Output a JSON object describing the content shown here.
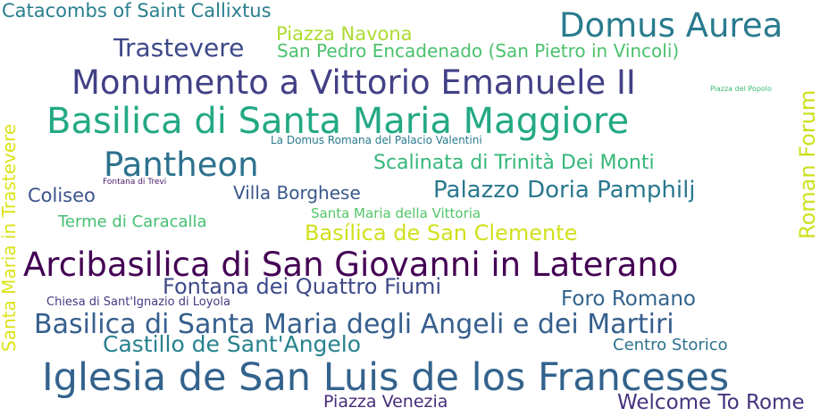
{
  "word_cloud": {
    "words": [
      {
        "text": "Catacombs of Saint Callixtus",
        "color": "#2a7f8e"
      },
      {
        "text": "Domus Aurea",
        "color": "#297b8e"
      },
      {
        "text": "Piazza Navona",
        "color": "#addc30"
      },
      {
        "text": "Trastevere",
        "color": "#3e4989"
      },
      {
        "text": "San Pedro Encadenado (San Pietro in Vincoli)",
        "color": "#4ac16d"
      },
      {
        "text": "Monumento a Vittorio Emanuele II",
        "color": "#424086"
      },
      {
        "text": "Piazza del Popolo",
        "color": "#3dbc74"
      },
      {
        "text": "Basilica di Santa Maria Maggiore",
        "color": "#23a983"
      },
      {
        "text": "Roman Forum",
        "color": "#cde11d"
      },
      {
        "text": "Santa Maria in Trastevere",
        "color": "#dde318"
      },
      {
        "text": "La Domus Romana del Palacio Valentini",
        "color": "#297a8e"
      },
      {
        "text": "Pantheon",
        "color": "#2c718e"
      },
      {
        "text": "Scalinata di Trinità Dei Monti",
        "color": "#35b779"
      },
      {
        "text": "Fontana di Trevi",
        "color": "#481769"
      },
      {
        "text": "Coliseo",
        "color": "#3b528b"
      },
      {
        "text": "Villa Borghese",
        "color": "#38588c"
      },
      {
        "text": "Palazzo Doria Pamphilj",
        "color": "#2a788e"
      },
      {
        "text": "Terme di Caracalla",
        "color": "#44bf70"
      },
      {
        "text": "Santa Maria della Vittoria",
        "color": "#52c569"
      },
      {
        "text": "Basílica de San Clemente",
        "color": "#d0e11c"
      },
      {
        "text": "Arcibasilica di San Giovanni in Laterano",
        "color": "#440154"
      },
      {
        "text": "Fontana dei Quattro Fiumi",
        "color": "#3e4a89"
      },
      {
        "text": "Chiesa di Sant'Ignazio di Loyola",
        "color": "#443983"
      },
      {
        "text": "Foro Romano",
        "color": "#33638d"
      },
      {
        "text": "Basilica di Santa Maria degli Angeli e dei Martiri",
        "color": "#355f8d"
      },
      {
        "text": "Castillo de Sant'Angelo",
        "color": "#26828e"
      },
      {
        "text": "Centro Storico",
        "color": "#2c728e"
      },
      {
        "text": "Iglesia de San Luis de los Franceses",
        "color": "#33638d"
      },
      {
        "text": "Piazza Venezia",
        "color": "#472d7b"
      },
      {
        "text": "Welcome To Rome",
        "color": "#46337e"
      }
    ]
  }
}
